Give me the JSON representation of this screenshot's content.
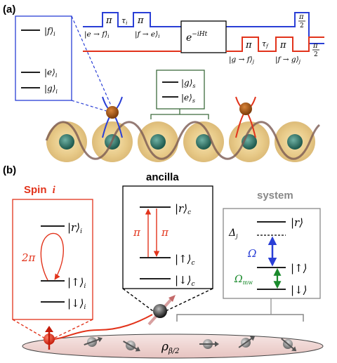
{
  "panel_a": {
    "label": "(a)",
    "level_box": {
      "f": "|f⟩",
      "f_sub": "i",
      "e": "|e⟩",
      "e_sub": "i",
      "g": "|g⟩",
      "g_sub": "i"
    },
    "system_box": {
      "g": "|g⟩",
      "g_sub": "s",
      "e": "|e⟩",
      "e_sub": "s"
    },
    "blue_pulses": {
      "pulse1": "π",
      "tau1": "τ",
      "tau1_sub": "i",
      "pulse2": "π",
      "label1": "|e → f⟩",
      "label1_sub": "i",
      "label2": "|f → e⟩",
      "label2_sub": "i",
      "final_num": "π",
      "final_den": "2"
    },
    "evolution_box": {
      "base": "e",
      "exponent": "−iHt"
    },
    "red_pulses": {
      "pulse1": "π",
      "tau": "τ",
      "tau_sub": "f",
      "pulse2": "π",
      "label1": "|g → f⟩",
      "label1_sub": "j",
      "label2": "|f → g⟩",
      "label2_sub": "j",
      "final_num": "π",
      "final_den": "2"
    }
  },
  "panel_b": {
    "label": "(b)",
    "spin_title": "Spin",
    "spin_index": "i",
    "spin_box": {
      "r": "|r⟩",
      "r_sub": "i",
      "up": "|↑⟩",
      "up_sub": "i",
      "down": "|↓⟩",
      "down_sub": "i",
      "loop_label": "2π"
    },
    "ancilla_title": "ancilla",
    "ancilla_box": {
      "r": "|r⟩",
      "r_sub": "c",
      "up": "|↑⟩",
      "up_sub": "c",
      "down": "|↓⟩",
      "down_sub": "c",
      "pi_left": "π",
      "pi_right": "π"
    },
    "system_title": "system",
    "system_box": {
      "delta": "Δ",
      "delta_sub": "j",
      "r": "|r⟩",
      "omega": "Ω",
      "up": "|↑⟩",
      "omega_mw": "Ω",
      "omega_mw_sub": "mw",
      "down": "|↓⟩"
    },
    "rho": "ρ",
    "rho_sub": "β/2"
  },
  "colors": {
    "blue": "#2a3fd6",
    "red": "#e2331b",
    "green": "#1a8a2c",
    "dark_green": "#3d6b3d",
    "gray": "#888888",
    "brown": "#8a4a12",
    "atom_halo": "#e8cc8a",
    "atom_core": "#2e6f62",
    "chain_pink": "#f2d8d6"
  }
}
